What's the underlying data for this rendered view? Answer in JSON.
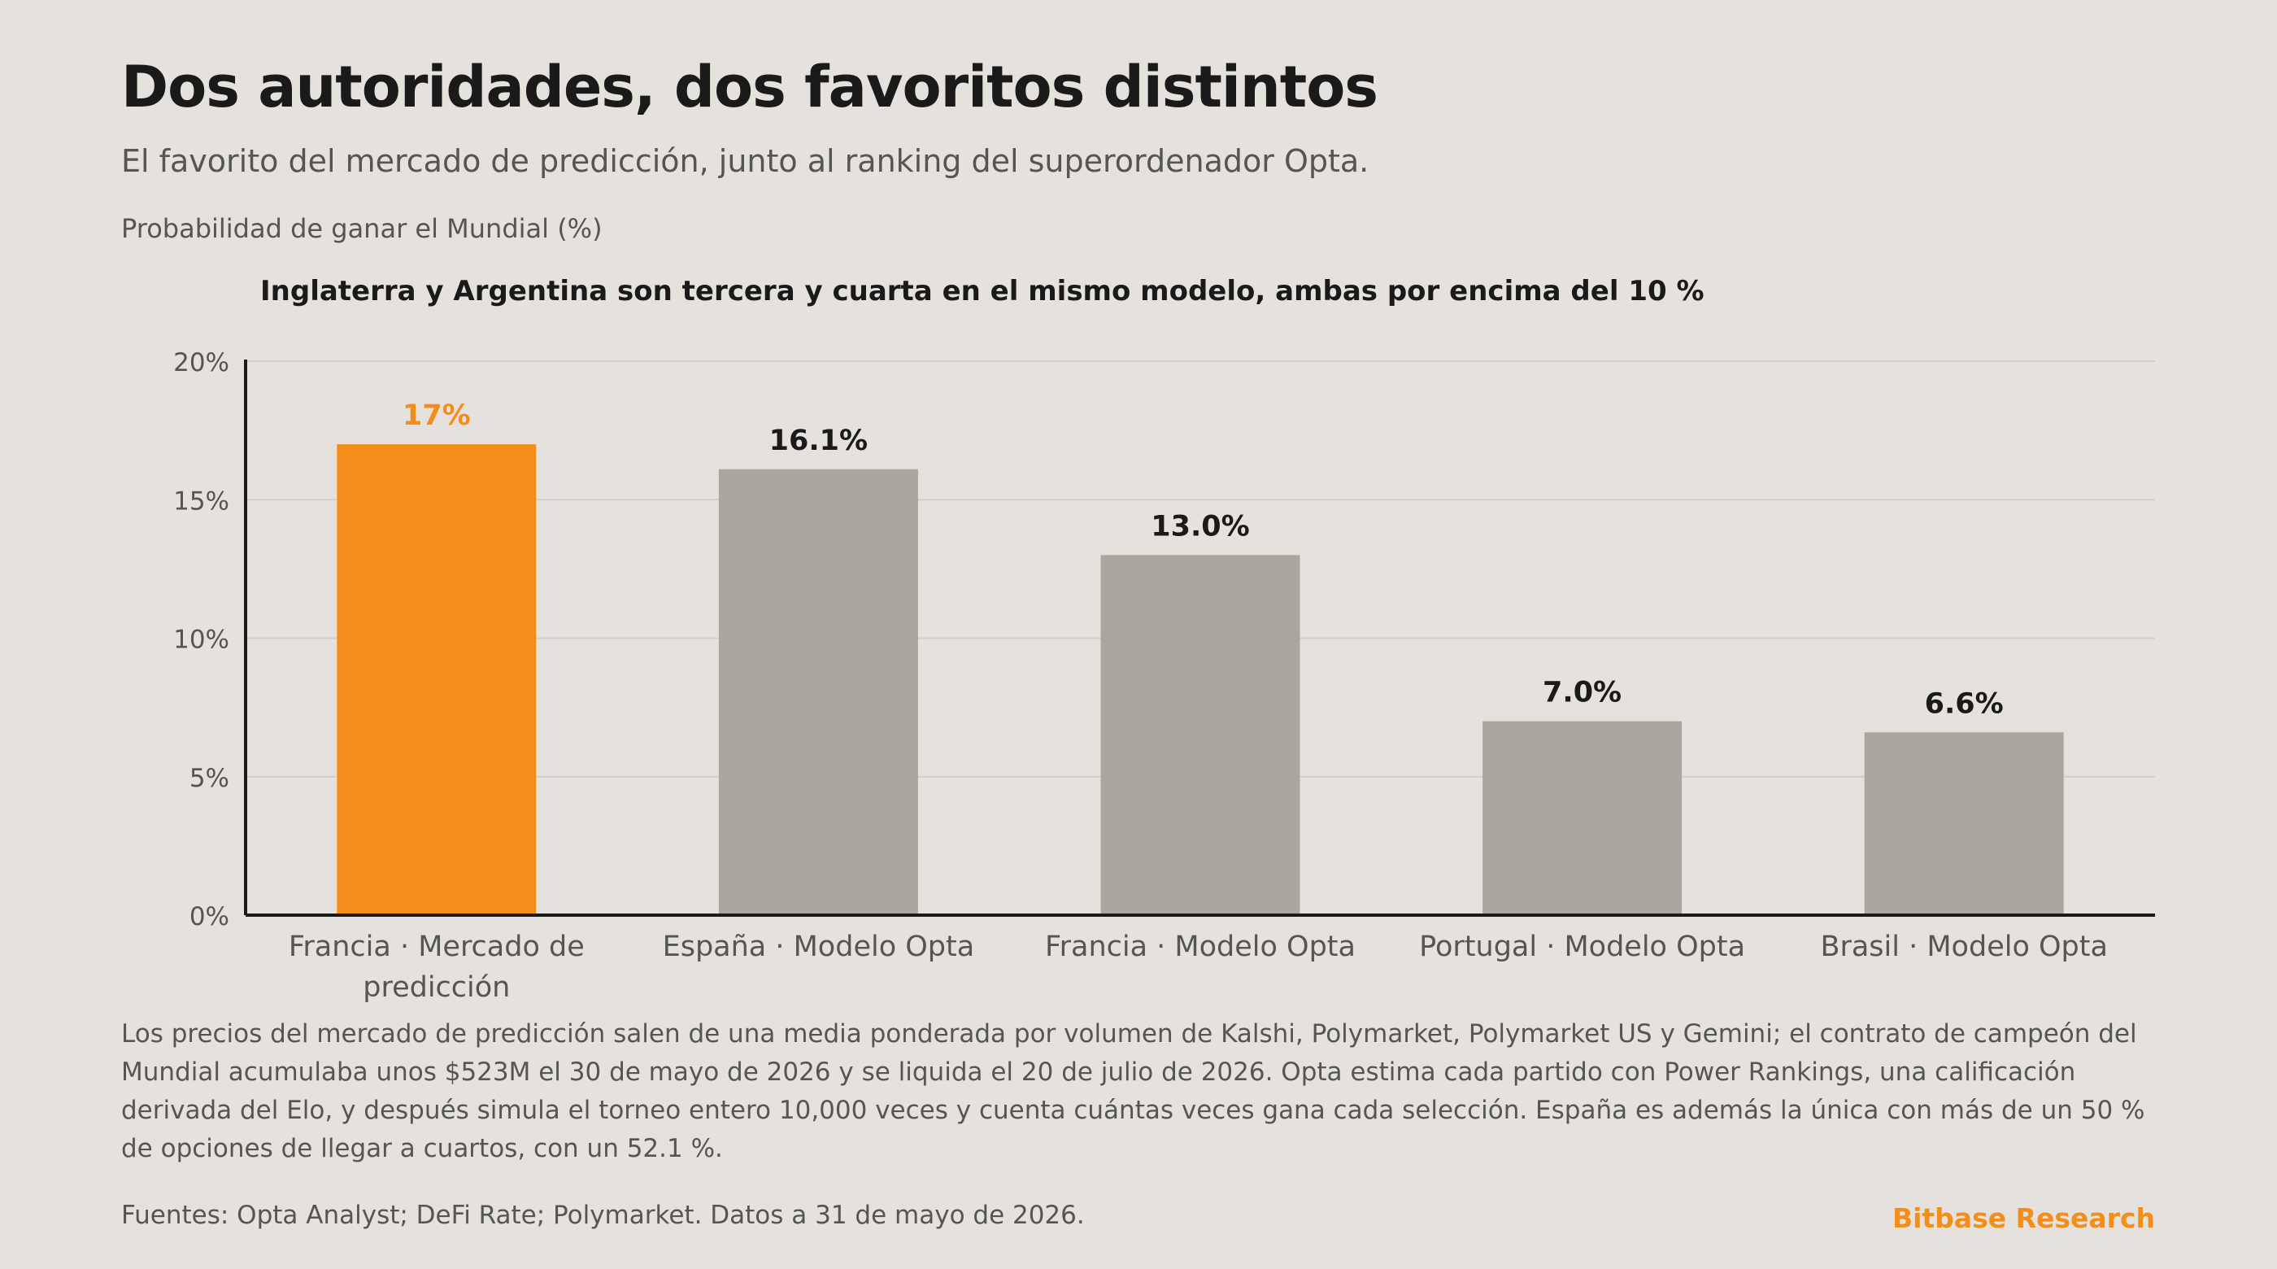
{
  "header": {
    "title": "Dos autoridades, dos favoritos distintos",
    "subtitle": "El favorito del mercado de predicción, junto al ranking del superordenador Opta.",
    "unit_label": "Probabilidad de ganar el Mundial (%)"
  },
  "footer": {
    "note": "Los precios del mercado de predicción salen de una media ponderada por volumen de Kalshi, Polymarket, Polymarket US y Gemini; el contrato de campeón del Mundial acumulaba unos $523M el 30 de mayo de 2026 y se liquida el 20 de julio de 2026. Opta estima cada partido con Power Rankings, una calificación derivada del Elo, y después simula el torneo entero 10,000 veces y cuenta cuántas veces gana cada selección. España es además la única con más de un 50 % de opciones de llegar a cuartos, con un 52.1 %.",
    "sources": "Fuentes: Opta Analyst; DeFi Rate; Polymarket. Datos a 31 de mayo de 2026.",
    "brand": "Bitbase Research"
  },
  "chart_data": {
    "type": "bar",
    "annotation": "Inglaterra y Argentina son tercera y cuarta en el mismo modelo, ambas por encima del 10 %",
    "categories": [
      [
        "Francia · Mercado de",
        "predicción"
      ],
      [
        "España · Modelo Opta"
      ],
      [
        "Francia · Modelo Opta"
      ],
      [
        "Portugal · Modelo Opta"
      ],
      [
        "Brasil · Modelo Opta"
      ]
    ],
    "values": [
      17,
      16.1,
      13.0,
      7.0,
      6.6
    ],
    "value_labels": [
      "17%",
      "16.1%",
      "13.0%",
      "7.0%",
      "6.6%"
    ],
    "highlight_index": 0,
    "y_ticks": [
      0,
      5,
      10,
      15,
      20
    ],
    "y_tick_labels": [
      "0%",
      "5%",
      "10%",
      "15%",
      "20%"
    ],
    "ylim": [
      0,
      20
    ],
    "grid": true,
    "colors": {
      "highlight": "#f48e1a",
      "default": "#aaa6a0",
      "grid": "#d3cec8",
      "axis": "#1a1a1a"
    }
  }
}
